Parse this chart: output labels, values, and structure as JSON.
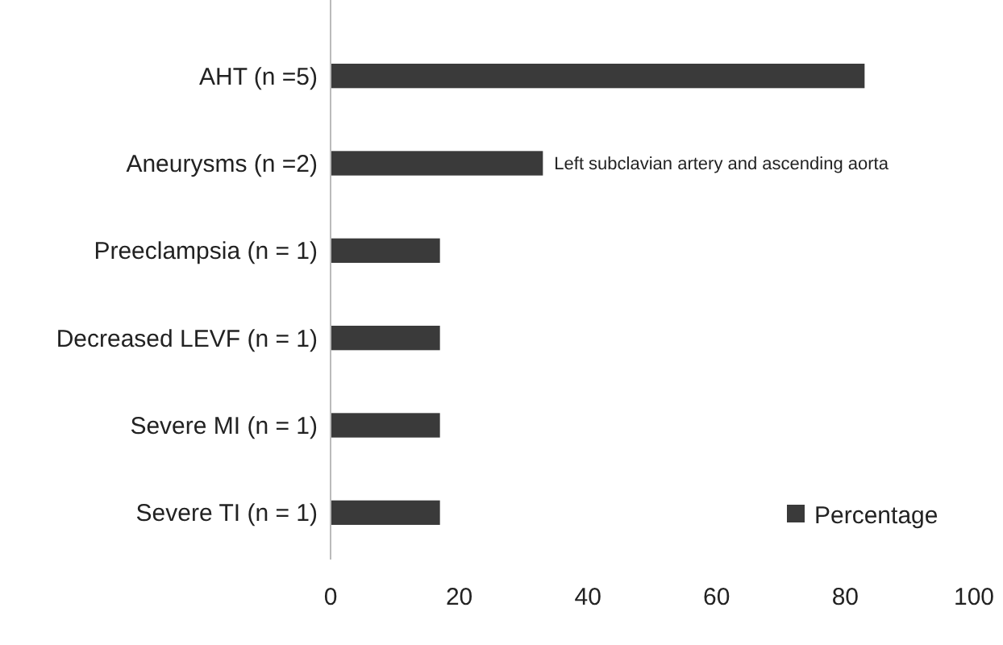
{
  "chart_data": {
    "type": "bar",
    "orientation": "horizontal",
    "categories": [
      "AHT (n =5)",
      "Aneurysms (n =2)",
      "Preeclampsia (n = 1)",
      "Decreased LEVF (n = 1)",
      "Severe MI (n = 1)",
      "Severe TI (n = 1)"
    ],
    "series": [
      {
        "name": "Percentage",
        "color": "#3a3a3a",
        "values": [
          83,
          33,
          17,
          17,
          17,
          17
        ]
      }
    ],
    "xlim": [
      0,
      100
    ],
    "xticks": [
      0,
      20,
      40,
      60,
      80,
      100
    ],
    "grid": false,
    "legend": "bottom right",
    "annotations": [
      {
        "text": "Left subclavian artery and ascending aorta",
        "x": 33,
        "y": "Aneurysms (n =2)"
      }
    ]
  }
}
